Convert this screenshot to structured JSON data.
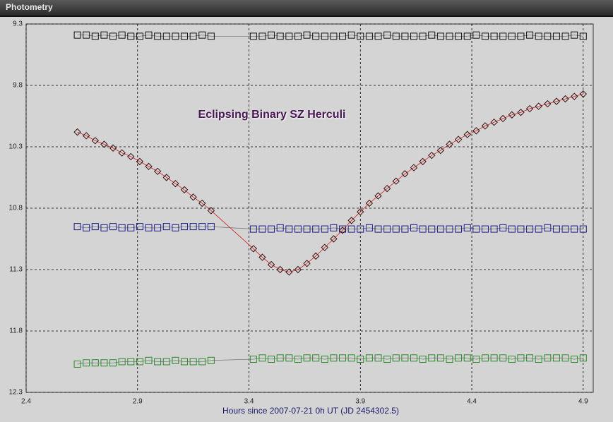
{
  "window_title": "Photometry",
  "chart_data": {
    "type": "scatter-line",
    "annotation": "Eclipsing Binary SZ Herculi",
    "xlabel": "Hours since 2007-07-21 0h UT (JD 2454302.5)",
    "xlim": [
      2.4,
      4.945
    ],
    "xticks": [
      2.4,
      2.9,
      3.4,
      3.9,
      4.4,
      4.9
    ],
    "ylim": [
      9.3,
      12.3
    ],
    "yticks": [
      9.3,
      9.8,
      10.3,
      10.8,
      11.3,
      11.8,
      12.3
    ],
    "y_inverted": true,
    "grid": true,
    "x": [
      2.63,
      2.67,
      2.71,
      2.75,
      2.79,
      2.83,
      2.87,
      2.91,
      2.95,
      2.99,
      3.03,
      3.07,
      3.11,
      3.15,
      3.19,
      3.23,
      3.42,
      3.46,
      3.5,
      3.54,
      3.58,
      3.62,
      3.66,
      3.7,
      3.74,
      3.78,
      3.82,
      3.86,
      3.9,
      3.94,
      3.98,
      4.02,
      4.06,
      4.1,
      4.14,
      4.18,
      4.22,
      4.26,
      4.3,
      4.34,
      4.38,
      4.42,
      4.46,
      4.5,
      4.54,
      4.58,
      4.62,
      4.66,
      4.7,
      4.74,
      4.78,
      4.82,
      4.86,
      4.9
    ],
    "series": [
      {
        "marker": "square",
        "color": "#111111",
        "line_color": "#777777",
        "values": [
          9.39,
          9.39,
          9.4,
          9.39,
          9.4,
          9.39,
          9.4,
          9.4,
          9.39,
          9.4,
          9.4,
          9.4,
          9.4,
          9.4,
          9.39,
          9.4,
          9.4,
          9.4,
          9.39,
          9.4,
          9.4,
          9.4,
          9.39,
          9.4,
          9.4,
          9.4,
          9.4,
          9.39,
          9.4,
          9.4,
          9.4,
          9.39,
          9.4,
          9.4,
          9.4,
          9.4,
          9.39,
          9.4,
          9.4,
          9.4,
          9.4,
          9.39,
          9.4,
          9.4,
          9.4,
          9.4,
          9.4,
          9.39,
          9.4,
          9.4,
          9.4,
          9.4,
          9.39,
          9.4
        ]
      },
      {
        "marker": "square",
        "color": "#1c1c8a",
        "line_color": "#777777",
        "values": [
          10.95,
          10.96,
          10.95,
          10.96,
          10.95,
          10.96,
          10.96,
          10.95,
          10.96,
          10.96,
          10.95,
          10.96,
          10.95,
          10.95,
          10.95,
          10.95,
          10.97,
          10.97,
          10.97,
          10.96,
          10.97,
          10.97,
          10.97,
          10.97,
          10.97,
          10.96,
          10.97,
          10.97,
          10.97,
          10.96,
          10.97,
          10.97,
          10.97,
          10.97,
          10.96,
          10.97,
          10.97,
          10.97,
          10.97,
          10.97,
          10.96,
          10.97,
          10.97,
          10.97,
          10.96,
          10.97,
          10.97,
          10.97,
          10.97,
          10.96,
          10.97,
          10.97,
          10.97,
          10.97
        ]
      },
      {
        "marker": "square",
        "color": "#2a8a2a",
        "line_color": "#777777",
        "values": [
          12.07,
          12.06,
          12.06,
          12.06,
          12.06,
          12.05,
          12.05,
          12.05,
          12.04,
          12.05,
          12.05,
          12.04,
          12.05,
          12.05,
          12.05,
          12.04,
          12.03,
          12.02,
          12.03,
          12.02,
          12.02,
          12.03,
          12.02,
          12.02,
          12.03,
          12.02,
          12.02,
          12.02,
          12.03,
          12.02,
          12.02,
          12.03,
          12.02,
          12.02,
          12.02,
          12.03,
          12.02,
          12.02,
          12.03,
          12.02,
          12.02,
          12.03,
          12.02,
          12.02,
          12.02,
          12.03,
          12.02,
          12.02,
          12.03,
          12.02,
          12.02,
          12.02,
          12.03,
          12.02
        ]
      },
      {
        "marker": "diamond",
        "color": "#3a1010",
        "line_color": "#cc2020",
        "values": [
          10.18,
          10.21,
          10.25,
          10.28,
          10.31,
          10.35,
          10.38,
          10.42,
          10.46,
          10.5,
          10.55,
          10.6,
          10.65,
          10.71,
          10.76,
          10.82,
          11.13,
          11.2,
          11.26,
          11.3,
          11.32,
          11.3,
          11.25,
          11.19,
          11.12,
          11.05,
          10.98,
          10.9,
          10.83,
          10.76,
          10.7,
          10.64,
          10.58,
          10.52,
          10.47,
          10.42,
          10.37,
          10.33,
          10.28,
          10.24,
          10.2,
          10.17,
          10.13,
          10.1,
          10.07,
          10.04,
          10.02,
          9.99,
          9.97,
          9.95,
          9.93,
          9.91,
          9.89,
          9.87
        ]
      }
    ]
  }
}
